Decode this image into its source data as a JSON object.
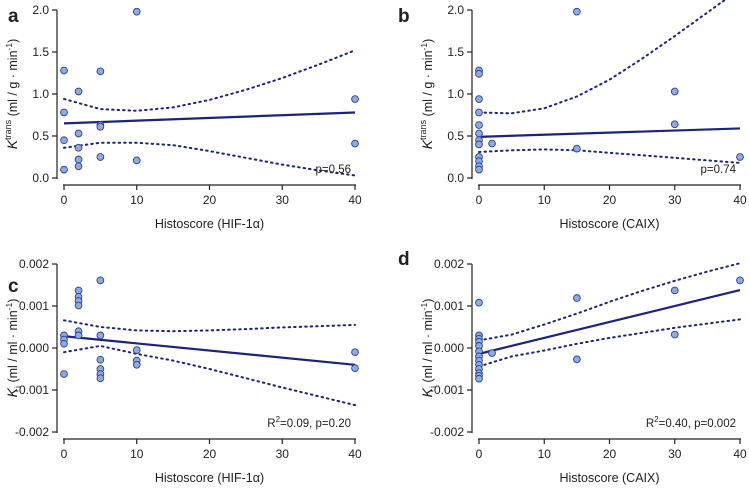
{
  "chart_data": [
    {
      "type": "scatter",
      "letter": "a",
      "xlabel": "Histoscore (HIF-1α)",
      "ylabel": {
        "symbol": "K",
        "sup": "trans",
        "units": " (ml / g · min",
        "exp": "-1",
        "close": ")"
      },
      "xlim": [
        0,
        40
      ],
      "ylim": [
        0,
        2
      ],
      "xticks": [
        0,
        10,
        20,
        30,
        40
      ],
      "xtick_labels": [
        "0",
        "10",
        "20",
        "30",
        "40"
      ],
      "yticks": [
        0,
        0.5,
        1,
        1.5,
        2
      ],
      "ytick_labels": [
        "0.0",
        "0.5",
        "1.0",
        "1.5",
        "2.0"
      ],
      "points": [
        [
          0,
          1.28
        ],
        [
          0,
          0.78
        ],
        [
          0,
          0.45
        ],
        [
          0,
          0.1
        ],
        [
          2,
          1.03
        ],
        [
          2,
          0.53
        ],
        [
          2,
          0.36
        ],
        [
          2,
          0.22
        ],
        [
          2,
          0.14
        ],
        [
          5,
          1.27
        ],
        [
          5,
          0.63
        ],
        [
          5,
          0.61
        ],
        [
          5,
          0.25
        ],
        [
          10,
          1.98
        ],
        [
          10,
          0.21
        ],
        [
          40,
          0.94
        ],
        [
          40,
          0.41
        ]
      ],
      "fit": {
        "x": [
          0,
          40
        ],
        "y": [
          0.65,
          0.78
        ]
      },
      "ci_upper": {
        "x": [
          0,
          5,
          10,
          15,
          20,
          25,
          30,
          35,
          40
        ],
        "y": [
          0.94,
          0.82,
          0.8,
          0.84,
          0.93,
          1.05,
          1.19,
          1.35,
          1.52
        ]
      },
      "ci_lower": {
        "x": [
          0,
          5,
          10,
          15,
          20,
          25,
          30,
          35,
          40
        ],
        "y": [
          0.36,
          0.42,
          0.42,
          0.39,
          0.32,
          0.24,
          0.16,
          0.09,
          0.03
        ]
      },
      "annotation": {
        "text": "p=0.56"
      }
    },
    {
      "type": "scatter",
      "letter": "b",
      "xlabel": "Histoscore (CAIX)",
      "ylabel": {
        "symbol": "K",
        "sup": "trans",
        "units": " (ml / g · min",
        "exp": "-1",
        "close": ")"
      },
      "xlim": [
        0,
        40
      ],
      "ylim": [
        0,
        2
      ],
      "xticks": [
        0,
        10,
        20,
        30,
        40
      ],
      "xtick_labels": [
        "0",
        "10",
        "20",
        "30",
        "40"
      ],
      "yticks": [
        0,
        0.5,
        1,
        1.5,
        2
      ],
      "ytick_labels": [
        "0.0",
        "0.5",
        "1.0",
        "1.5",
        "2.0"
      ],
      "points": [
        [
          0,
          1.28
        ],
        [
          0,
          1.24
        ],
        [
          0,
          0.94
        ],
        [
          0,
          0.78
        ],
        [
          0,
          0.63
        ],
        [
          0,
          0.53
        ],
        [
          0,
          0.45
        ],
        [
          0,
          0.4
        ],
        [
          0,
          0.25
        ],
        [
          0,
          0.2
        ],
        [
          0,
          0.14
        ],
        [
          0,
          0.1
        ],
        [
          2,
          0.41
        ],
        [
          15,
          1.98
        ],
        [
          15,
          0.35
        ],
        [
          30,
          1.03
        ],
        [
          30,
          0.64
        ],
        [
          40,
          0.25
        ]
      ],
      "fit": {
        "x": [
          0,
          40
        ],
        "y": [
          0.49,
          0.59
        ]
      },
      "ci_upper": {
        "x": [
          0,
          5,
          10,
          15,
          20,
          25,
          30,
          35,
          40
        ],
        "y": [
          0.78,
          0.77,
          0.83,
          0.97,
          1.17,
          1.42,
          1.69,
          1.97,
          2.25
        ]
      },
      "ci_lower": {
        "x": [
          0,
          5,
          10,
          15,
          20,
          25,
          30,
          35,
          40
        ],
        "y": [
          0.31,
          0.33,
          0.34,
          0.33,
          0.3,
          0.27,
          0.24,
          0.21,
          0.18
        ]
      },
      "annotation": {
        "text": "p=0.74"
      }
    },
    {
      "type": "scatter",
      "letter": "c",
      "xlabel": "Histoscore (HIF-1α)",
      "ylabel": {
        "symbol": "K",
        "sub": "i",
        "units": " (ml / ml · min",
        "exp": "-1",
        "close": ")"
      },
      "xlim": [
        0,
        40
      ],
      "ylim": [
        -0.002,
        0.002
      ],
      "xticks": [
        0,
        10,
        20,
        30,
        40
      ],
      "xtick_labels": [
        "0",
        "10",
        "20",
        "30",
        "40"
      ],
      "yticks": [
        -0.002,
        -0.001,
        0,
        0.001,
        0.002
      ],
      "ytick_labels": [
        "-0.002",
        "-0.001",
        "0.000",
        "0.001",
        "0.002"
      ],
      "points": [
        [
          0,
          0.0003
        ],
        [
          0,
          0.0002
        ],
        [
          0,
          0.0001
        ],
        [
          0,
          -0.00062
        ],
        [
          2,
          0.00137
        ],
        [
          2,
          0.00122
        ],
        [
          2,
          0.00112
        ],
        [
          2,
          0.00101
        ],
        [
          2,
          0.0004
        ],
        [
          2,
          0.0003
        ],
        [
          5,
          0.00161
        ],
        [
          5,
          0.0003
        ],
        [
          5,
          -0.00028
        ],
        [
          5,
          -0.0005
        ],
        [
          5,
          -0.00062
        ],
        [
          5,
          -0.00072
        ],
        [
          10,
          -5e-05
        ],
        [
          10,
          -0.0003
        ],
        [
          10,
          -0.0004
        ],
        [
          40,
          -0.0001
        ],
        [
          40,
          -0.00048
        ]
      ],
      "fit": {
        "x": [
          0,
          40
        ],
        "y": [
          0.00028,
          -0.0004
        ]
      },
      "ci_upper": {
        "x": [
          0,
          5,
          10,
          15,
          20,
          25,
          30,
          35,
          40
        ],
        "y": [
          0.00066,
          0.0005,
          0.00042,
          0.0004,
          0.00042,
          0.00045,
          0.00049,
          0.00052,
          0.00055
        ]
      },
      "ci_lower": {
        "x": [
          0,
          5,
          10,
          15,
          20,
          25,
          30,
          35,
          40
        ],
        "y": [
          -0.0001,
          5e-05,
          -0.00014,
          -0.0003,
          -0.0005,
          -0.00072,
          -0.00094,
          -0.00115,
          -0.00136
        ]
      },
      "annotation": {
        "text": "R",
        "sup": "2",
        "rest": "=0.09, p=0.20"
      }
    },
    {
      "type": "scatter",
      "letter": "d",
      "xlabel": "Histoscore (CAIX)",
      "ylabel": {
        "symbol": "K",
        "sub": "i",
        "units": " (ml / ml · min",
        "exp": "-1",
        "close": ")"
      },
      "xlim": [
        0,
        40
      ],
      "ylim": [
        -0.002,
        0.002
      ],
      "xticks": [
        0,
        10,
        20,
        30,
        40
      ],
      "xtick_labels": [
        "0",
        "10",
        "20",
        "30",
        "40"
      ],
      "yticks": [
        -0.002,
        -0.001,
        0,
        0.001,
        0.002
      ],
      "ytick_labels": [
        "-0.002",
        "-0.001",
        "0.000",
        "0.001",
        "0.002"
      ],
      "points": [
        [
          0,
          0.00108
        ],
        [
          0,
          0.0003
        ],
        [
          0,
          0.00022
        ],
        [
          0,
          0.00015
        ],
        [
          0,
          5e-05
        ],
        [
          0,
          -8e-05
        ],
        [
          0,
          -0.0002
        ],
        [
          0,
          -0.0003
        ],
        [
          0,
          -0.0004
        ],
        [
          0,
          -0.0005
        ],
        [
          0,
          -0.0006
        ],
        [
          0,
          -0.00066
        ],
        [
          0,
          -0.00073
        ],
        [
          2,
          -0.00012
        ],
        [
          15,
          0.00119
        ],
        [
          15,
          -0.00027
        ],
        [
          30,
          0.00137
        ],
        [
          30,
          0.00032
        ],
        [
          40,
          0.00161
        ]
      ],
      "fit": {
        "x": [
          0,
          40
        ],
        "y": [
          -0.00014,
          0.00138
        ]
      },
      "ci_upper": {
        "x": [
          0,
          5,
          10,
          15,
          20,
          25,
          30,
          35,
          40
        ],
        "y": [
          0.00018,
          0.00032,
          0.00056,
          0.00082,
          0.0011,
          0.00136,
          0.0016,
          0.00182,
          0.00202
        ]
      },
      "ci_lower": {
        "x": [
          0,
          5,
          10,
          15,
          20,
          25,
          30,
          35,
          40
        ],
        "y": [
          -0.00044,
          -0.0002,
          -6e-05,
          0.0001,
          0.00024,
          0.00036,
          0.00048,
          0.00058,
          0.00068
        ]
      },
      "annotation": {
        "text": "R",
        "sup": "2",
        "rest": "=0.40, p=0.002"
      }
    }
  ]
}
